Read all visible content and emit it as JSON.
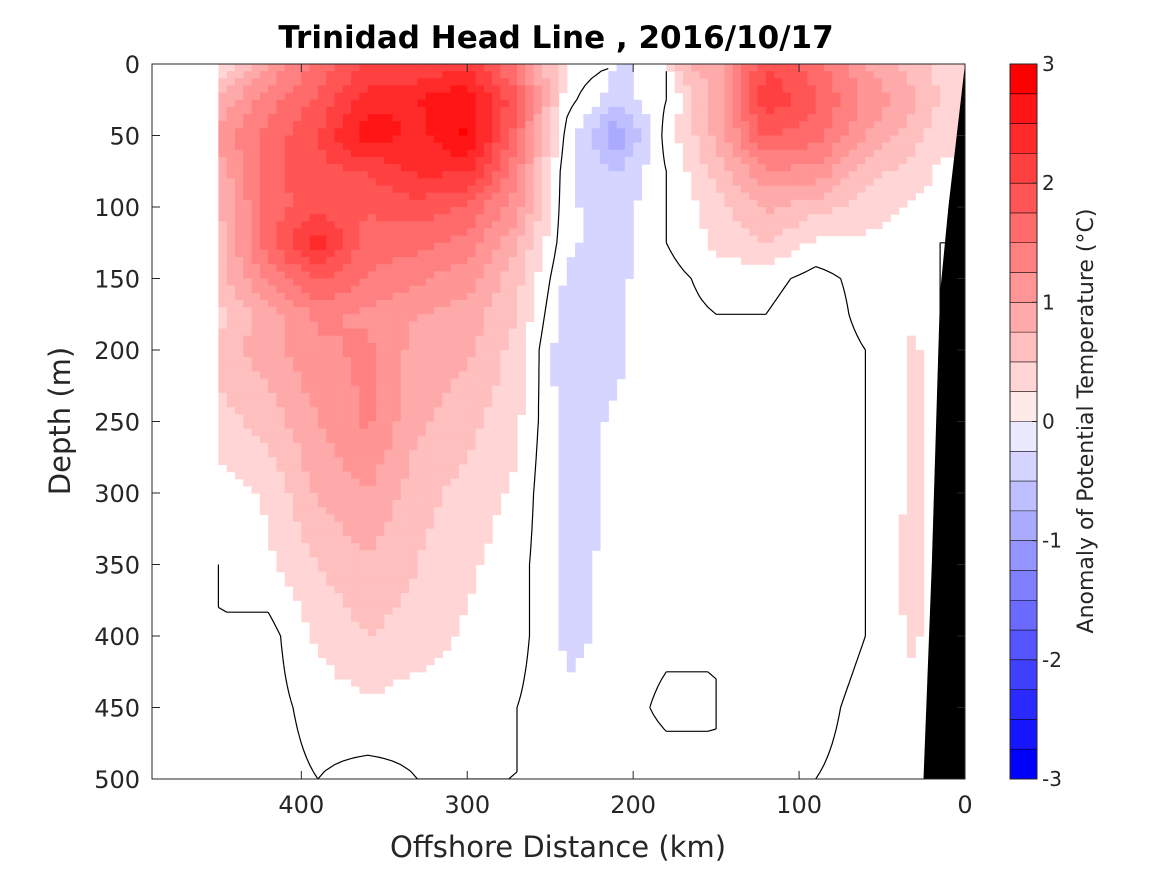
{
  "chart_data": {
    "type": "heatmap",
    "title": "Trinidad Head Line , 2016/10/17",
    "xlabel": "Offshore Distance (km)",
    "ylabel": "Depth (m)",
    "xlim": [
      490,
      0
    ],
    "ylim": [
      0,
      500
    ],
    "x_reversed": true,
    "y_reversed": true,
    "xticks": [
      400,
      300,
      200,
      100,
      0
    ],
    "yticks": [
      0,
      50,
      100,
      150,
      200,
      250,
      300,
      350,
      400,
      450,
      500
    ],
    "colorbar": {
      "label": "Anomaly of Potential Temperature (°C)",
      "range": [
        -3,
        3
      ],
      "levels": 24,
      "ticks": [
        -3,
        -2,
        -1,
        0,
        1,
        2,
        3
      ],
      "tick_labels": [
        "-3",
        "-2",
        "-1",
        "0",
        "1",
        "2",
        "3"
      ],
      "colormap": "blue-white-red"
    },
    "contour_levels": [
      0
    ],
    "land_color": "#000000",
    "grid": false,
    "distances_km": [
      450,
      420,
      390,
      360,
      330,
      300,
      270,
      240,
      210,
      180,
      150,
      120,
      90,
      60,
      30,
      15
    ],
    "depths_m": [
      0,
      25,
      50,
      75,
      100,
      125,
      150,
      175,
      200,
      250,
      300,
      350,
      400,
      450,
      500
    ],
    "anomaly": [
      [
        0.2,
        1.0,
        1.6,
        2.0,
        2.0,
        2.2,
        1.4,
        0.2,
        null,
        null,
        0.8,
        2.0,
        1.6,
        1.0,
        0.6,
        0.4
      ],
      [
        0.8,
        1.4,
        1.8,
        2.4,
        2.5,
        2.7,
        1.8,
        0.1,
        -0.4,
        0.0,
        0.9,
        2.2,
        1.8,
        1.2,
        0.8,
        0.5
      ],
      [
        1.1,
        1.6,
        2.0,
        2.7,
        2.4,
        2.8,
        1.6,
        -0.1,
        -1.0,
        0.1,
        0.8,
        1.8,
        1.6,
        1.0,
        0.6,
        0.3
      ],
      [
        0.8,
        1.7,
        1.9,
        2.0,
        2.3,
        2.3,
        1.3,
        -0.2,
        -0.5,
        0.0,
        0.6,
        1.2,
        1.2,
        0.6,
        0.4,
        0.2
      ],
      [
        0.7,
        1.6,
        1.9,
        1.8,
        1.9,
        1.7,
        1.1,
        -0.2,
        -0.4,
        0.0,
        0.4,
        0.8,
        0.6,
        0.4,
        0.2,
        0.1
      ],
      [
        0.6,
        1.7,
        2.4,
        1.6,
        1.6,
        1.4,
        0.8,
        -0.2,
        -0.4,
        0.0,
        0.3,
        0.5,
        0.2,
        0.2,
        0.1,
        0.0
      ],
      [
        0.6,
        1.3,
        1.8,
        1.5,
        1.3,
        1.1,
        0.6,
        -0.3,
        -0.3,
        -0.1,
        0.1,
        0.1,
        -0.1,
        0.1,
        0.1,
        0.0
      ],
      [
        0.4,
        0.9,
        1.3,
        1.2,
        1.0,
        0.9,
        0.5,
        -0.4,
        -0.3,
        -0.1,
        0.0,
        0.0,
        -0.2,
        0.1,
        0.2,
        0.0
      ],
      [
        0.6,
        0.9,
        1.2,
        1.3,
        0.9,
        0.8,
        0.4,
        -0.5,
        -0.3,
        -0.1,
        0.0,
        -0.1,
        -0.2,
        0.0,
        0.3,
        0.0
      ],
      [
        0.4,
        0.6,
        1.0,
        1.3,
        0.8,
        0.6,
        0.3,
        -0.4,
        -0.2,
        -0.1,
        0.0,
        -0.1,
        -0.2,
        0.0,
        0.3,
        0.0
      ],
      [
        0.1,
        0.3,
        0.8,
        1.0,
        0.6,
        0.4,
        0.2,
        -0.4,
        -0.2,
        -0.1,
        0.0,
        -0.1,
        -0.2,
        0.0,
        0.3,
        0.0
      ],
      [
        0.0,
        0.2,
        0.5,
        0.7,
        0.5,
        0.3,
        0.1,
        -0.3,
        -0.2,
        -0.1,
        0.0,
        -0.1,
        -0.2,
        0.0,
        0.4,
        0.0
      ],
      [
        0.0,
        -0.1,
        0.3,
        0.5,
        0.4,
        0.2,
        0.1,
        -0.3,
        -0.2,
        -0.1,
        0.0,
        -0.1,
        -0.2,
        0.0,
        0.3,
        0.0
      ],
      [
        0.0,
        -0.1,
        0.1,
        0.2,
        0.1,
        0.1,
        0.0,
        -0.2,
        -0.2,
        0.1,
        0.0,
        0.0,
        -0.1,
        0.1,
        0.2,
        0.0
      ],
      [
        -0.1,
        -0.1,
        0.0,
        -0.1,
        0.0,
        0.0,
        0.0,
        -0.2,
        -0.2,
        -0.2,
        0.0,
        0.0,
        0.0,
        0.1,
        0.2,
        0.0
      ]
    ],
    "bathymetry_km_depth": [
      [
        0,
        0
      ],
      [
        10,
        100
      ],
      [
        15,
        160
      ],
      [
        20,
        350
      ],
      [
        25,
        500
      ]
    ]
  }
}
